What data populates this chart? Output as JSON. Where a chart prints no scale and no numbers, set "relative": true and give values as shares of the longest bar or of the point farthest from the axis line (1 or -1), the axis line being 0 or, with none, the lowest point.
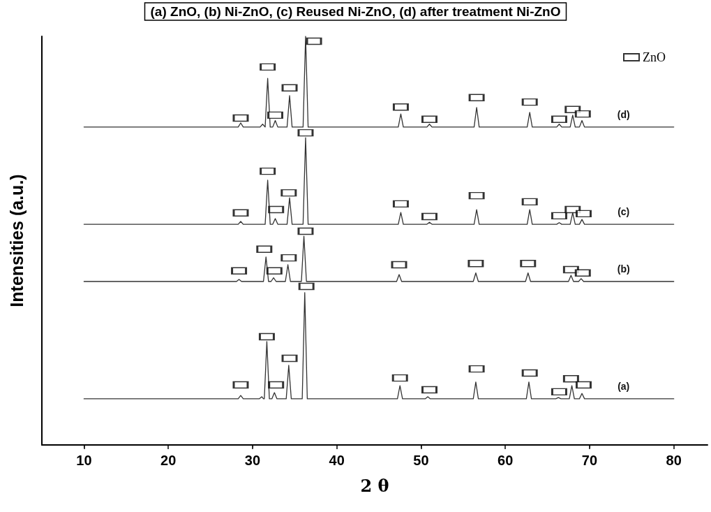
{
  "chart_data": {
    "type": "line",
    "relative": true,
    "title": "(a) ZnO, (b) Ni-ZnO, (c) Reused Ni-ZnO, (d) after treatment Ni-ZnO",
    "xlabel": "2 θ",
    "ylabel": "Intensities (a.u.)",
    "xlim": [
      5,
      84
    ],
    "xticks": [
      10,
      20,
      30,
      40,
      50,
      60,
      70,
      80
    ],
    "grid": false,
    "legend": "top right",
    "marker": "none",
    "line_style": "solid",
    "series": [
      {
        "name": "(a)",
        "color": "#333333",
        "x": [
          10,
          28.3,
          28.6,
          28.9,
          30.8,
          31.1,
          31.3,
          31.4,
          31.7,
          32.0,
          32.3,
          32.6,
          32.9,
          34.0,
          34.3,
          34.6,
          35.9,
          36.2,
          36.5,
          47.2,
          47.5,
          47.8,
          50.5,
          50.8,
          51.1,
          56.2,
          56.5,
          56.8,
          62.5,
          62.8,
          63.1,
          66.0,
          66.3,
          66.6,
          67.6,
          67.9,
          68.2,
          68.8,
          69.1,
          69.4,
          80
        ],
        "values": [
          0.113,
          0.113,
          0.121,
          0.113,
          0.113,
          0.118,
          0.113,
          0.113,
          0.253,
          0.113,
          0.113,
          0.128,
          0.113,
          0.113,
          0.195,
          0.113,
          0.113,
          0.373,
          0.113,
          0.113,
          0.145,
          0.113,
          0.113,
          0.118,
          0.113,
          0.113,
          0.154,
          0.113,
          0.113,
          0.154,
          0.113,
          0.113,
          0.116,
          0.113,
          0.113,
          0.145,
          0.113,
          0.113,
          0.126,
          0.113,
          0.113
        ]
      },
      {
        "name": "(b)",
        "color": "#333333",
        "x": [
          10,
          28.1,
          28.4,
          28.7,
          31.3,
          31.6,
          31.9,
          32.2,
          32.5,
          32.8,
          33.9,
          34.2,
          34.5,
          35.8,
          36.1,
          36.4,
          47.1,
          47.4,
          47.7,
          56.2,
          56.5,
          56.8,
          62.4,
          62.7,
          63.0,
          67.5,
          67.8,
          68.1,
          68.7,
          69.0,
          69.3,
          80
        ],
        "values": [
          0.4,
          0.4,
          0.405,
          0.4,
          0.4,
          0.46,
          0.4,
          0.4,
          0.409,
          0.4,
          0.4,
          0.441,
          0.4,
          0.4,
          0.511,
          0.4,
          0.4,
          0.417,
          0.4,
          0.4,
          0.421,
          0.4,
          0.4,
          0.421,
          0.4,
          0.4,
          0.415,
          0.4,
          0.4,
          0.407,
          0.4,
          0.4
        ]
      },
      {
        "name": "(c)",
        "color": "#333333",
        "x": [
          10,
          28.3,
          28.6,
          28.9,
          31.5,
          31.8,
          32.1,
          32.4,
          32.7,
          33.0,
          34.1,
          34.4,
          34.7,
          36.0,
          36.3,
          36.6,
          47.3,
          47.6,
          47.9,
          50.7,
          51.0,
          51.3,
          56.3,
          56.6,
          56.9,
          62.6,
          62.9,
          63.2,
          66.1,
          66.4,
          66.7,
          67.7,
          68.0,
          68.3,
          68.8,
          69.1,
          69.4,
          80
        ],
        "values": [
          0.54,
          0.54,
          0.547,
          0.54,
          0.54,
          0.648,
          0.54,
          0.54,
          0.554,
          0.54,
          0.54,
          0.605,
          0.54,
          0.54,
          0.752,
          0.54,
          0.54,
          0.569,
          0.54,
          0.54,
          0.545,
          0.54,
          0.54,
          0.576,
          0.54,
          0.54,
          0.576,
          0.54,
          0.54,
          0.544,
          0.54,
          0.54,
          0.568,
          0.54,
          0.54,
          0.552,
          0.54,
          0.54
        ]
      },
      {
        "name": "(d)",
        "color": "#333333",
        "x": [
          10,
          28.3,
          28.6,
          28.9,
          30.9,
          31.2,
          31.5,
          31.8,
          32.1,
          32.4,
          32.7,
          33.0,
          34.1,
          34.4,
          34.7,
          36.0,
          36.3,
          36.6,
          47.3,
          47.6,
          47.9,
          50.7,
          51.0,
          51.3,
          56.3,
          56.6,
          56.9,
          62.6,
          62.9,
          63.2,
          66.1,
          66.4,
          66.7,
          67.7,
          68.0,
          68.3,
          68.8,
          69.1,
          69.4,
          80
        ],
        "values": [
          0.778,
          0.778,
          0.788,
          0.778,
          0.778,
          0.785,
          0.778,
          0.897,
          0.778,
          0.778,
          0.794,
          0.778,
          0.778,
          0.855,
          0.778,
          0.778,
          1.0,
          0.778,
          0.778,
          0.81,
          0.778,
          0.778,
          0.785,
          0.778,
          0.778,
          0.826,
          0.778,
          0.778,
          0.814,
          0.778,
          0.778,
          0.785,
          0.778,
          0.778,
          0.807,
          0.778,
          0.778,
          0.794,
          0.778,
          0.778
        ]
      },
      {
        "name": "ZnO",
        "type": "scatter",
        "marker": "square",
        "color": "#000000",
        "x": [
          28.6,
          31.7,
          32.8,
          34.4,
          36.4,
          47.5,
          51.0,
          56.6,
          62.9,
          66.4,
          67.8,
          69.3,
          28.4,
          31.4,
          32.6,
          34.3,
          36.3,
          47.4,
          56.5,
          62.7,
          67.8,
          69.2,
          28.6,
          31.8,
          32.8,
          34.3,
          36.3,
          47.6,
          51.0,
          56.6,
          62.9,
          66.4,
          68.0,
          69.3,
          28.6,
          31.8,
          32.7,
          34.4,
          37.3,
          47.6,
          51.0,
          56.6,
          62.9,
          66.4,
          68.0,
          69.2
        ],
        "values": [
          0.147,
          0.265,
          0.147,
          0.212,
          0.388,
          0.164,
          0.135,
          0.186,
          0.176,
          0.13,
          0.162,
          0.147,
          0.426,
          0.479,
          0.426,
          0.458,
          0.523,
          0.441,
          0.444,
          0.444,
          0.429,
          0.421,
          0.568,
          0.67,
          0.576,
          0.617,
          0.764,
          0.59,
          0.559,
          0.61,
          0.595,
          0.561,
          0.576,
          0.566,
          0.8,
          0.925,
          0.807,
          0.874,
          0.988,
          0.827,
          0.797,
          0.85,
          0.839,
          0.797,
          0.821,
          0.81
        ]
      }
    ]
  }
}
